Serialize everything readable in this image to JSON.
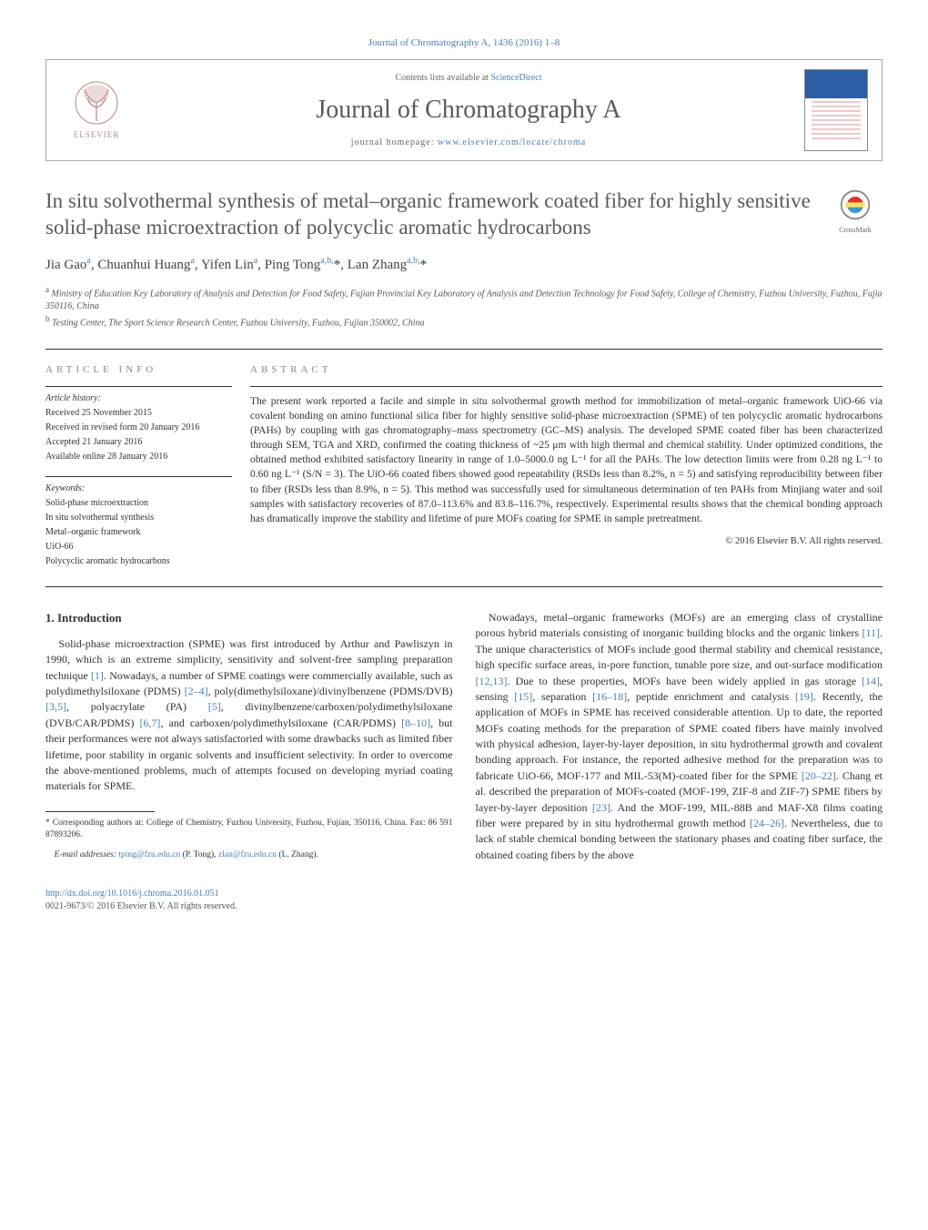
{
  "header": {
    "top_citation": "Journal of Chromatography A, 1436 (2016) 1–8",
    "contents_prefix": "Contents lists available at ",
    "contents_link": "ScienceDirect",
    "journal_name": "Journal of Chromatography A",
    "homepage_prefix": "journal homepage: ",
    "homepage_link": "www.elsevier.com/locate/chroma",
    "publisher_label": "ELSEVIER"
  },
  "crossmark_label": "CrossMark",
  "title": "In situ solvothermal synthesis of metal–organic framework coated fiber for highly sensitive solid-phase microextraction of polycyclic aromatic hydrocarbons",
  "authors_html": "Jia Gao<sup>a</sup>, Chuanhui Huang<sup>a</sup>, Yifen Lin<sup>a</sup>, Ping Tong<sup>a,b,</sup><span class='ast'>*</span>, Lan Zhang<sup>a,b,</sup><span class='ast'>*</span>",
  "affiliations": {
    "a": "Ministry of Education Key Laboratory of Analysis and Detection for Food Safety, Fujian Provincial Key Laboratory of Analysis and Detection Technology for Food Safety, College of Chemistry, Fuzhou University, Fuzhou, Fujia 350116, China",
    "b": "Testing Center, The Sport Science Research Center, Fuzhou University, Fuzhou, Fujian 350002, China"
  },
  "article_info": {
    "heading": "article info",
    "history_label": "Article history:",
    "received": "Received 25 November 2015",
    "revised": "Received in revised form 20 January 2016",
    "accepted": "Accepted 21 January 2016",
    "online": "Available online 28 January 2016",
    "keywords_label": "Keywords:",
    "keywords": [
      "Solid-phase microextraction",
      "In situ solvothermal synthesis",
      "Metal–organic framework",
      "UiO-66",
      "Polycyclic aromatic hydrocarbons"
    ]
  },
  "abstract": {
    "heading": "abstract",
    "text": "The present work reported a facile and simple in situ solvothermal growth method for immobilization of metal–organic framework UiO-66 via covalent bonding on amino functional silica fiber for highly sensitive solid-phase microextraction (SPME) of ten polycyclic aromatic hydrocarbons (PAHs) by coupling with gas chromatography–mass spectrometry (GC–MS) analysis. The developed SPME coated fiber has been characterized through SEM, TGA and XRD, confirmed the coating thickness of ~25 μm with high thermal and chemical stability. Under optimized conditions, the obtained method exhibited satisfactory linearity in range of 1.0–5000.0 ng L⁻¹ for all the PAHs. The low detection limits were from 0.28 ng L⁻¹ to 0.60 ng L⁻¹ (S/N = 3). The UiO-66 coated fibers showed good repeatability (RSDs less than 8.2%, n = 5) and satisfying reproducibility between fiber to fiber (RSDs less than 8.9%, n = 5). This method was successfully used for simultaneous determination of ten PAHs from Minjiang water and soil samples with satisfactory recoveries of 87.0–113.6% and 83.8–116.7%, respectively. Experimental results shows that the chemical bonding approach has dramatically improve the stability and lifetime of pure MOFs coating for SPME in sample pretreatment.",
    "copyright": "© 2016 Elsevier B.V. All rights reserved."
  },
  "section1": {
    "heading": "1.  Introduction",
    "p1_a": "Solid-phase microextraction (SPME) was first introduced by Arthur and Pawliszyn in 1990, which is an extreme simplicity, sensitivity and solvent-free sampling preparation technique ",
    "p1_ref1": "[1]",
    "p1_b": ". Nowadays, a number of SPME coatings were commercially available, such as polydimethylsiloxane (PDMS) ",
    "p1_ref2": "[2–4]",
    "p1_c": ", poly(dimethylsiloxane)/divinylbenzene (PDMS/DVB) ",
    "p1_ref3": "[3,5]",
    "p1_d": ", polyacrylate (PA) ",
    "p1_ref4": "[5]",
    "p1_e": ", divinylbenzene/carboxen/polydimethylsiloxane (DVB/CAR/PDMS) ",
    "p1_ref5": "[6,7]",
    "p1_f": ", and carboxen/polydimethylsiloxane (CAR/PDMS) ",
    "p1_ref6": "[8–10]",
    "p1_g": ", but their performances were not always satisfactoried with some drawbacks such as limited fiber lifetime, poor stability in organic solvents and insufficient selectivity. In order to overcome the above-mentioned problems, much of attempts focused on developing myriad coating materials for SPME.",
    "p2_a": "Nowadays, metal–organic frameworks (MOFs) are an emerging class of crystalline porous hybrid materials consisting of inorganic building blocks and the organic linkers ",
    "p2_ref1": "[11]",
    "p2_b": ". The unique characteristics of MOFs include good thermal stability and chemical resistance, high specific surface areas, in-pore function, tunable pore size, and out-surface modification ",
    "p2_ref2": "[12,13]",
    "p2_c": ". Due to these properties, MOFs have been widely applied in gas storage ",
    "p2_ref3": "[14]",
    "p2_d": ", sensing ",
    "p2_ref4": "[15]",
    "p2_e": ", separation ",
    "p2_ref5": "[16–18]",
    "p2_f": ", peptide enrichment and catalysis ",
    "p2_ref6": "[19]",
    "p2_g": ". Recently, the application of MOFs in SPME has received considerable attention. Up to date, the reported MOFs coating methods for the preparation of SPME coated fibers have mainly involved with physical adhesion, layer-by-layer deposition, in situ hydrothermal growth and covalent bonding approach. For instance, the reported adhesive method for the preparation was to fabricate UiO-66, MOF-177 and MIL-53(M)-coated fiber for the SPME ",
    "p2_ref7": "[20–22]",
    "p2_h": ". Chang et al. described the preparation of MOFs-coated (MOF-199, ZIF-8 and ZIF-7) SPME fibers by layer-by-layer deposition ",
    "p2_ref8": "[23]",
    "p2_i": ". And the MOF-199, MIL-88B and MAF-X8 films coating fiber were prepared by in situ hydrothermal growth method ",
    "p2_ref9": "[24–26]",
    "p2_j": ". Nevertheless, due to lack of stable chemical bonding between the stationary phases and coating fiber surface, the obtained coating fibers by the above"
  },
  "footnotes": {
    "corr": "* Corresponding authors at: College of Chemistry, Fuzhou University, Fuzhou, Fujian, 350116, China. Fax: 86 591 87893206.",
    "email_label": "E-mail addresses: ",
    "email1": "tping@fzu.edu.cn",
    "email1_who": " (P. Tong), ",
    "email2": "zlan@fzu.edu.cn",
    "email2_who": " (L. Zhang)."
  },
  "bottom": {
    "doi": "http://dx.doi.org/10.1016/j.chroma.2016.01.051",
    "issn_line": "0021-9673/© 2016 Elsevier B.V. All rights reserved."
  },
  "colors": {
    "link": "#4a7fb5",
    "heading_gray": "#5a5a5a",
    "rule": "#333333"
  }
}
